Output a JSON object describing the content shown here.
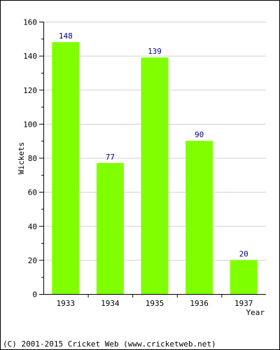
{
  "chart_data": {
    "type": "bar",
    "categories": [
      "1933",
      "1934",
      "1935",
      "1936",
      "1937"
    ],
    "values": [
      148,
      77,
      139,
      90,
      20
    ],
    "data_labels": [
      "148",
      "77",
      "139",
      "90",
      "20"
    ],
    "xlabel": "Year",
    "ylabel": "Wickets",
    "ylim": [
      0,
      160
    ],
    "y_ticks": [
      0,
      20,
      40,
      60,
      80,
      100,
      120,
      140,
      160
    ],
    "y_minor_step": 10,
    "grid": true,
    "legend": "none",
    "colors": {
      "bar": "#80ff00",
      "data_label": "#000080",
      "grid": "#d0d0d0",
      "axis": "#000000",
      "text": "#000000"
    }
  },
  "footer": {
    "copyright": "(C) 2001-2015 Cricket Web (www.cricketweb.net)"
  }
}
